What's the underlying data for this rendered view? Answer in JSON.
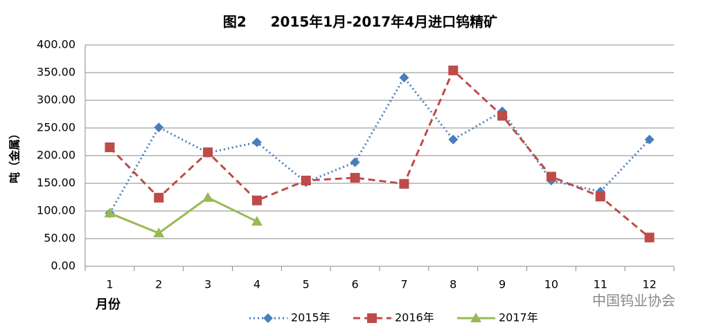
{
  "chart_data": {
    "type": "line",
    "title": "图2     2015年1月-2017年4月进口钨精矿",
    "y_label": "吨（金属）",
    "x_label": "月份",
    "watermark": "中国钨业协会",
    "categories": [
      "1",
      "2",
      "3",
      "4",
      "5",
      "6",
      "7",
      "8",
      "9",
      "10",
      "11",
      "12"
    ],
    "series": [
      {
        "name": "2015年",
        "color": "#4a7ebb",
        "marker": "diamond",
        "line_style": "dotted",
        "values": [
          96,
          251,
          205,
          224,
          152,
          188,
          341,
          229,
          280,
          155,
          135,
          229
        ]
      },
      {
        "name": "2016年",
        "color": "#be4b48",
        "marker": "square",
        "line_style": "dashed",
        "values": [
          215,
          124,
          206,
          119,
          155,
          160,
          149,
          354,
          272,
          162,
          126,
          52
        ]
      },
      {
        "name": "2017年",
        "color": "#98b954",
        "marker": "triangle",
        "line_style": "solid",
        "values": [
          96,
          60,
          124,
          81,
          null,
          null,
          null,
          null,
          null,
          null,
          null,
          null
        ]
      }
    ],
    "ylim": [
      0,
      400
    ],
    "yticks": [
      {
        "value": 0,
        "label": "0.00"
      },
      {
        "value": 50,
        "label": "50.00"
      },
      {
        "value": 100,
        "label": "100.00"
      },
      {
        "value": 150,
        "label": "150.00"
      },
      {
        "value": 200,
        "label": "200.00"
      },
      {
        "value": 250,
        "label": "250.00"
      },
      {
        "value": 300,
        "label": "300.00"
      },
      {
        "value": 350,
        "label": "350.00"
      },
      {
        "value": 400,
        "label": "400.00"
      }
    ],
    "grid": true,
    "legend": "bottom"
  }
}
